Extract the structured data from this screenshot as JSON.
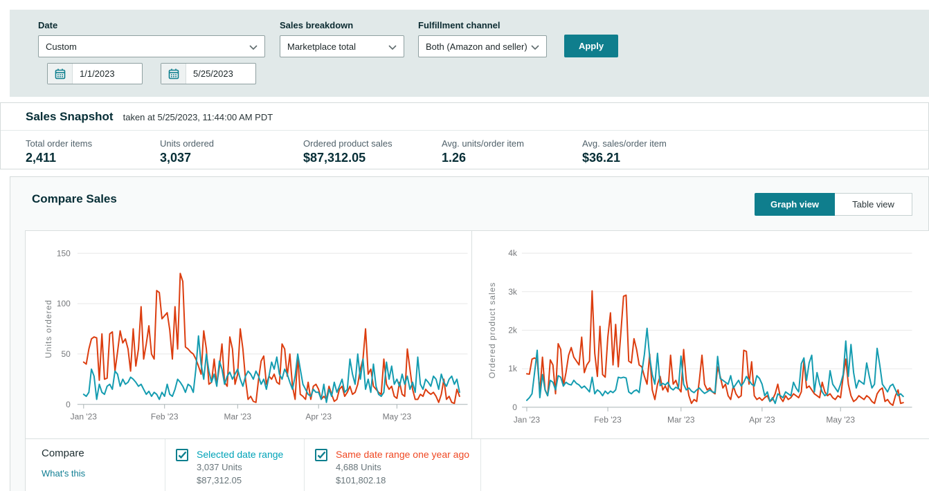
{
  "filters": {
    "date": {
      "label": "Date",
      "value": "Custom",
      "start": "1/1/2023",
      "end": "5/25/2023"
    },
    "sales_breakdown": {
      "label": "Sales breakdown",
      "value": "Marketplace total"
    },
    "fulfillment_channel": {
      "label": "Fulfillment channel",
      "value": "Both (Amazon and seller)"
    },
    "apply_label": "Apply"
  },
  "sales_snapshot": {
    "title": "Sales Snapshot",
    "taken_at": "taken at 5/25/2023, 11:44:00 AM PDT",
    "stats": [
      {
        "label": "Total order items",
        "value": "2,411"
      },
      {
        "label": "Units ordered",
        "value": "3,037"
      },
      {
        "label": "Ordered product sales",
        "value": "$87,312.05"
      },
      {
        "label": "Avg. units/order item",
        "value": "1.26"
      },
      {
        "label": "Avg. sales/order item",
        "value": "$36.21"
      }
    ]
  },
  "compare_sales": {
    "title": "Compare Sales",
    "graph_view_label": "Graph view",
    "table_view_label": "Table view",
    "compare_label": "Compare",
    "whats_this_label": "What's this",
    "legend": [
      {
        "label": "Selected date range",
        "units": "3,037 Units",
        "sales": "$87,312.05",
        "color": "#00a3b8",
        "checked": true
      },
      {
        "label": "Same date range one year ago",
        "units": "4,688 Units",
        "sales": "$101,802.18",
        "color": "#ef4823",
        "checked": true
      }
    ]
  },
  "colors": {
    "accent_teal": "#0f7e8d",
    "series_current": "#149cb0",
    "series_previous": "#dc3d0f",
    "filter_bar_bg": "#e1e9e9",
    "panel_border": "#d5dbdb"
  },
  "chart_data": [
    {
      "type": "line",
      "title": "",
      "xlabel": "",
      "ylabel": "Units ordered",
      "ylim": [
        0,
        150
      ],
      "grid": true,
      "legend_position": "bottom",
      "yticks": [
        {
          "label": "0",
          "value": 0
        },
        {
          "label": "50",
          "value": 50
        },
        {
          "label": "100",
          "value": 100
        },
        {
          "label": "150",
          "value": 150
        }
      ],
      "xticks": [
        {
          "label": "Jan '23",
          "day": 0
        },
        {
          "label": "Feb '23",
          "day": 31
        },
        {
          "label": "Mar '23",
          "day": 59
        },
        {
          "label": "Apr '23",
          "day": 90
        },
        {
          "label": "May '23",
          "day": 120
        }
      ],
      "x_range": "daily values, 1/1/2023 - 5/25/2023 (145 days)",
      "series": [
        {
          "name": "Selected date range",
          "color": "#149cb0",
          "values": [
            10,
            8,
            12,
            35,
            28,
            5,
            20,
            12,
            10,
            18,
            20,
            15,
            33,
            30,
            18,
            25,
            20,
            22,
            27,
            25,
            22,
            18,
            20,
            15,
            10,
            13,
            8,
            12,
            10,
            5,
            12,
            8,
            20,
            10,
            8,
            15,
            25,
            22,
            18,
            12,
            20,
            18,
            12,
            35,
            68,
            40,
            25,
            50,
            33,
            22,
            30,
            18,
            43,
            35,
            20,
            28,
            32,
            25,
            30,
            35,
            25,
            18,
            28,
            33,
            30,
            25,
            33,
            28,
            20,
            25,
            15,
            28,
            42,
            35,
            47,
            30,
            25,
            35,
            30,
            22,
            15,
            28,
            50,
            35,
            20,
            15,
            10,
            8,
            15,
            12,
            12,
            5,
            20,
            2,
            15,
            8,
            22,
            12,
            18,
            25,
            12,
            15,
            45,
            30,
            20,
            50,
            25,
            45,
            15,
            25,
            12,
            40,
            18,
            10,
            8,
            12,
            42,
            25,
            38,
            20,
            25,
            18,
            30,
            20,
            28,
            15,
            22,
            12,
            47,
            20,
            15,
            25,
            22,
            18,
            28,
            25,
            15,
            30,
            22,
            18,
            25,
            28,
            20,
            25,
            12
          ]
        },
        {
          "name": "Same date range one year ago",
          "color": "#dc3d0f",
          "values": [
            42,
            40,
            55,
            65,
            67,
            66,
            24,
            70,
            25,
            26,
            70,
            72,
            33,
            52,
            73,
            61,
            65,
            55,
            33,
            75,
            38,
            55,
            97,
            45,
            60,
            78,
            50,
            45,
            113,
            111,
            85,
            88,
            91,
            74,
            45,
            97,
            55,
            130,
            122,
            57,
            55,
            52,
            50,
            45,
            38,
            30,
            73,
            55,
            20,
            22,
            45,
            20,
            37,
            60,
            22,
            18,
            67,
            55,
            20,
            30,
            75,
            55,
            25,
            5,
            8,
            3,
            2,
            25,
            43,
            48,
            20,
            28,
            25,
            30,
            22,
            20,
            60,
            55,
            28,
            50,
            18,
            5,
            48,
            10,
            8,
            5,
            22,
            5,
            18,
            20,
            15,
            5,
            8,
            5,
            18,
            10,
            3,
            5,
            15,
            18,
            8,
            12,
            18,
            10,
            12,
            20,
            35,
            45,
            75,
            30,
            35,
            18,
            15,
            12,
            10,
            45,
            20,
            15,
            18,
            8,
            6,
            22,
            10,
            8,
            55,
            35,
            15,
            5,
            5,
            10,
            8,
            15,
            12,
            10,
            12,
            8,
            2,
            10,
            25,
            5,
            8,
            2,
            1,
            15,
            8
          ]
        }
      ]
    },
    {
      "type": "line",
      "title": "",
      "xlabel": "",
      "ylabel": "Ordered product sales",
      "ylim": [
        0,
        4000
      ],
      "grid": true,
      "legend_position": "bottom",
      "yticks": [
        {
          "label": "0",
          "value": 0
        },
        {
          "label": "1k",
          "value": 1000
        },
        {
          "label": "2k",
          "value": 2000
        },
        {
          "label": "3k",
          "value": 3000
        },
        {
          "label": "4k",
          "value": 4000
        }
      ],
      "xticks": [
        {
          "label": "Jan '23",
          "day": 0
        },
        {
          "label": "Feb '23",
          "day": 31
        },
        {
          "label": "Mar '23",
          "day": 59
        },
        {
          "label": "Apr '23",
          "day": 90
        },
        {
          "label": "May '23",
          "day": 120
        }
      ],
      "x_range": "daily values, 1/1/2023 - 5/25/2023 (145 days)",
      "series": [
        {
          "name": "Selected date range",
          "color": "#149cb0",
          "values": [
            180,
            250,
            350,
            900,
            1480,
            250,
            850,
            450,
            300,
            700,
            650,
            450,
            820,
            780,
            550,
            650,
            600,
            580,
            700,
            620,
            580,
            500,
            550,
            480,
            400,
            780,
            350,
            450,
            400,
            300,
            420,
            350,
            420,
            380,
            450,
            780,
            760,
            780,
            760,
            400,
            350,
            420,
            450,
            380,
            900,
            1380,
            2050,
            1300,
            850,
            600,
            1400,
            560,
            620,
            580,
            650,
            500,
            450,
            520,
            480,
            1330,
            600,
            450,
            500,
            420,
            380,
            450,
            500,
            420,
            360,
            400,
            450,
            400,
            380,
            1320,
            750,
            700,
            650,
            600,
            820,
            500,
            600,
            700,
            550,
            650,
            800,
            700,
            600,
            550,
            820,
            750,
            600,
            300,
            400,
            150,
            250,
            100,
            350,
            300,
            250,
            400,
            350,
            300,
            650,
            500,
            400,
            1130,
            1280,
            700,
            1150,
            1350,
            400,
            900,
            600,
            400,
            300,
            350,
            950,
            600,
            500,
            400,
            600,
            850,
            1720,
            800,
            1630,
            900,
            500,
            700,
            650,
            600,
            1150,
            800,
            500,
            600,
            1530,
            1100,
            600,
            500,
            400,
            550,
            600,
            450,
            300,
            350,
            280
          ]
        },
        {
          "name": "Same date range one year ago",
          "color": "#dc3d0f",
          "values": [
            870,
            860,
            1250,
            1280,
            1230,
            400,
            1300,
            450,
            300,
            1230,
            1100,
            350,
            1650,
            1500,
            550,
            900,
            1350,
            1550,
            1300,
            1200,
            1100,
            1820,
            900,
            1100,
            1200,
            3020,
            1400,
            800,
            2100,
            850,
            780,
            1820,
            2450,
            1100,
            2150,
            1050,
            1950,
            2880,
            2910,
            1200,
            1150,
            1780,
            1500,
            1100,
            1050,
            800,
            600,
            1380,
            450,
            200,
            600,
            800,
            450,
            550,
            400,
            1350,
            600,
            700,
            500,
            400,
            1500,
            700,
            300,
            100,
            200,
            150,
            700,
            1350,
            600,
            450,
            500,
            400,
            350,
            1050,
            800,
            500,
            600,
            300,
            200,
            550,
            350,
            250,
            300,
            1480,
            1450,
            600,
            1180,
            300,
            200,
            250,
            180,
            250,
            300,
            150,
            200,
            350,
            600,
            250,
            150,
            300,
            200,
            250,
            350,
            300,
            250,
            400,
            1200,
            500,
            550,
            450,
            350,
            300,
            250,
            650,
            400,
            300,
            350,
            250,
            200,
            300,
            250,
            800,
            1250,
            600,
            300,
            150,
            200,
            300,
            250,
            200,
            300,
            250,
            150,
            100,
            350,
            450,
            500,
            150,
            200,
            100,
            50,
            300,
            450,
            100,
            120
          ]
        }
      ]
    }
  ]
}
